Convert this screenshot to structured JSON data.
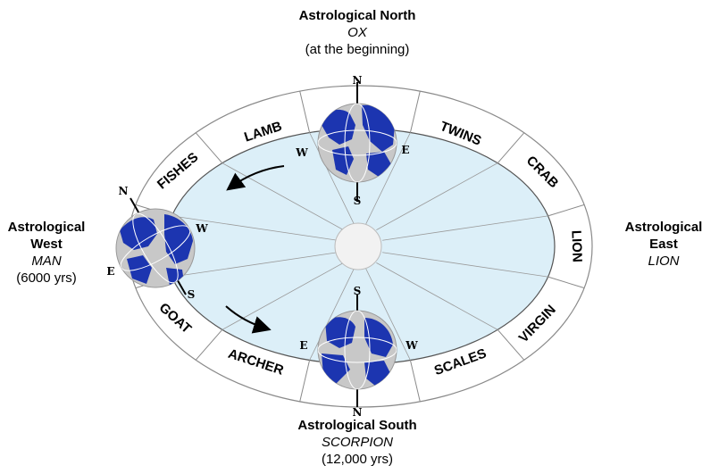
{
  "diagram": {
    "colors": {
      "ring_stroke": "#8a8a8a",
      "inner_fill": "#dceff8",
      "center_fill": "#f2f2f2",
      "earth_ocean": "#1c35b0",
      "earth_land": "#c8c8c8",
      "text": "#000000"
    },
    "signs": [
      "LAMB",
      "TWINS",
      "CRAB",
      "LION",
      "VIRGIN",
      "SCALES",
      "ARCHER",
      "GOAT",
      "FISHES"
    ],
    "compass_letters": {
      "north_earth": {
        "n": "N",
        "s": "S",
        "w": "W",
        "e": "E"
      },
      "west_earth": {
        "n": "N",
        "s": "S",
        "w": "W",
        "e": "E"
      },
      "south_earth": {
        "n": "N",
        "s": "S",
        "w": "W",
        "e": "E"
      }
    },
    "cardinal_labels": {
      "north": {
        "title": "Astrological North",
        "sign": "OX",
        "note": "(at the beginning)"
      },
      "west": {
        "title1": "Astrological",
        "title2": "West",
        "sign": "MAN",
        "note": "(6000 yrs)"
      },
      "east": {
        "title1": "Astrological",
        "title2": "East",
        "sign": "LION"
      },
      "south": {
        "title": "Astrological South",
        "sign": "SCORPION",
        "note": "(12,000 yrs)"
      }
    }
  }
}
